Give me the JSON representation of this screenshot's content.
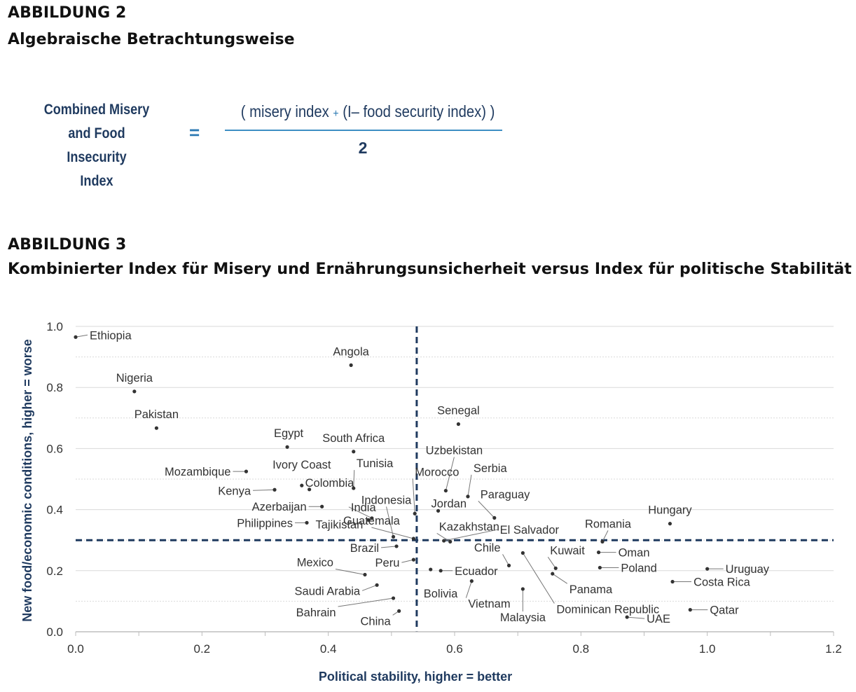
{
  "figure2": {
    "label": "ABBILDUNG 2",
    "title": "Algebraische Betrachtungsweise",
    "formula": {
      "lhs_lines": [
        "Combined Misery",
        "and Food Insecurity",
        "Index"
      ],
      "equals": "=",
      "numerator_open": "( misery index",
      "numerator_plus": "+",
      "numerator_rest": "(I– food security index) )",
      "denominator": "2"
    }
  },
  "figure3": {
    "label": "ABBILDUNG 3",
    "title": "Kombinierter Index für Misery und Ernährungsunsicherheit versus Index für politische Stabilität"
  },
  "colors": {
    "line": "#1f3a5f",
    "grid": "#d9d9d9",
    "dot": "#333333",
    "text": "#333333",
    "axis_label": "#1f3a5f"
  },
  "chart_data": {
    "type": "scatter",
    "xlabel": "Political stability, higher = better",
    "ylabel": "New food/economic conditions, higher = worse",
    "xlim": [
      0.0,
      1.2
    ],
    "ylim": [
      0.0,
      1.0
    ],
    "xticks": [
      "0.0",
      "0.2",
      "0.4",
      "0.6",
      "0.8",
      "1.0",
      "1.2"
    ],
    "yticks": [
      "0.0",
      "0.2",
      "0.4",
      "0.6",
      "0.8",
      "1.0"
    ],
    "reference_lines": {
      "x": 0.54,
      "y": 0.3
    },
    "points": [
      {
        "name": "Ethiopia",
        "x": 0.0,
        "y": 0.965
      },
      {
        "name": "Angola",
        "x": 0.436,
        "y": 0.873
      },
      {
        "name": "Nigeria",
        "x": 0.093,
        "y": 0.787
      },
      {
        "name": "Pakistan",
        "x": 0.128,
        "y": 0.667
      },
      {
        "name": "Senegal",
        "x": 0.606,
        "y": 0.68
      },
      {
        "name": "Egypt",
        "x": 0.335,
        "y": 0.605
      },
      {
        "name": "South Africa",
        "x": 0.44,
        "y": 0.59
      },
      {
        "name": "Uzbekistan",
        "x": 0.586,
        "y": 0.462
      },
      {
        "name": "Serbia",
        "x": 0.621,
        "y": 0.443
      },
      {
        "name": "Tunisia",
        "x": 0.44,
        "y": 0.47
      },
      {
        "name": "Morocco",
        "x": 0.537,
        "y": 0.387
      },
      {
        "name": "Ivory Coast",
        "x": 0.358,
        "y": 0.479
      },
      {
        "name": "Colombia",
        "x": 0.37,
        "y": 0.466
      },
      {
        "name": "Mozambique",
        "x": 0.27,
        "y": 0.525
      },
      {
        "name": "Kenya",
        "x": 0.315,
        "y": 0.465
      },
      {
        "name": "Indonesia",
        "x": 0.503,
        "y": 0.311
      },
      {
        "name": "Jordan",
        "x": 0.574,
        "y": 0.396
      },
      {
        "name": "Paraguay",
        "x": 0.663,
        "y": 0.373
      },
      {
        "name": "Hungary",
        "x": 0.941,
        "y": 0.354
      },
      {
        "name": "Azerbaijan",
        "x": 0.39,
        "y": 0.41
      },
      {
        "name": "India",
        "x": 0.469,
        "y": 0.372
      },
      {
        "name": "Philippines",
        "x": 0.366,
        "y": 0.357
      },
      {
        "name": "Tajikistan",
        "x": 0.464,
        "y": 0.366
      },
      {
        "name": "Guatemala",
        "x": 0.535,
        "y": 0.305
      },
      {
        "name": "Kazakhstan",
        "x": 0.593,
        "y": 0.295
      },
      {
        "name": "El Salvador",
        "x": 0.583,
        "y": 0.298
      },
      {
        "name": "Romania",
        "x": 0.834,
        "y": 0.295
      },
      {
        "name": "Brazil",
        "x": 0.508,
        "y": 0.28
      },
      {
        "name": "Kuwait",
        "x": 0.76,
        "y": 0.208
      },
      {
        "name": "Oman",
        "x": 0.828,
        "y": 0.26
      },
      {
        "name": "Chile",
        "x": 0.686,
        "y": 0.217
      },
      {
        "name": "Poland",
        "x": 0.83,
        "y": 0.21
      },
      {
        "name": "Uruguay",
        "x": 1.0,
        "y": 0.206
      },
      {
        "name": "Mexico",
        "x": 0.458,
        "y": 0.187
      },
      {
        "name": "Peru",
        "x": 0.535,
        "y": 0.236
      },
      {
        "name": "Ecuador",
        "x": 0.578,
        "y": 0.2
      },
      {
        "name": "Panama",
        "x": 0.755,
        "y": 0.19
      },
      {
        "name": "Costa Rica",
        "x": 0.945,
        "y": 0.164
      },
      {
        "name": "Saudi Arabia",
        "x": 0.477,
        "y": 0.153
      },
      {
        "name": "Bolivia",
        "x": 0.562,
        "y": 0.204
      },
      {
        "name": "Vietnam",
        "x": 0.627,
        "y": 0.166
      },
      {
        "name": "Dominican Republic",
        "x": 0.708,
        "y": 0.258
      },
      {
        "name": "Bahrain",
        "x": 0.503,
        "y": 0.11
      },
      {
        "name": "Malaysia",
        "x": 0.708,
        "y": 0.14
      },
      {
        "name": "China",
        "x": 0.512,
        "y": 0.068
      },
      {
        "name": "Qatar",
        "x": 0.973,
        "y": 0.072
      },
      {
        "name": "UAE",
        "x": 0.873,
        "y": 0.048
      }
    ]
  }
}
